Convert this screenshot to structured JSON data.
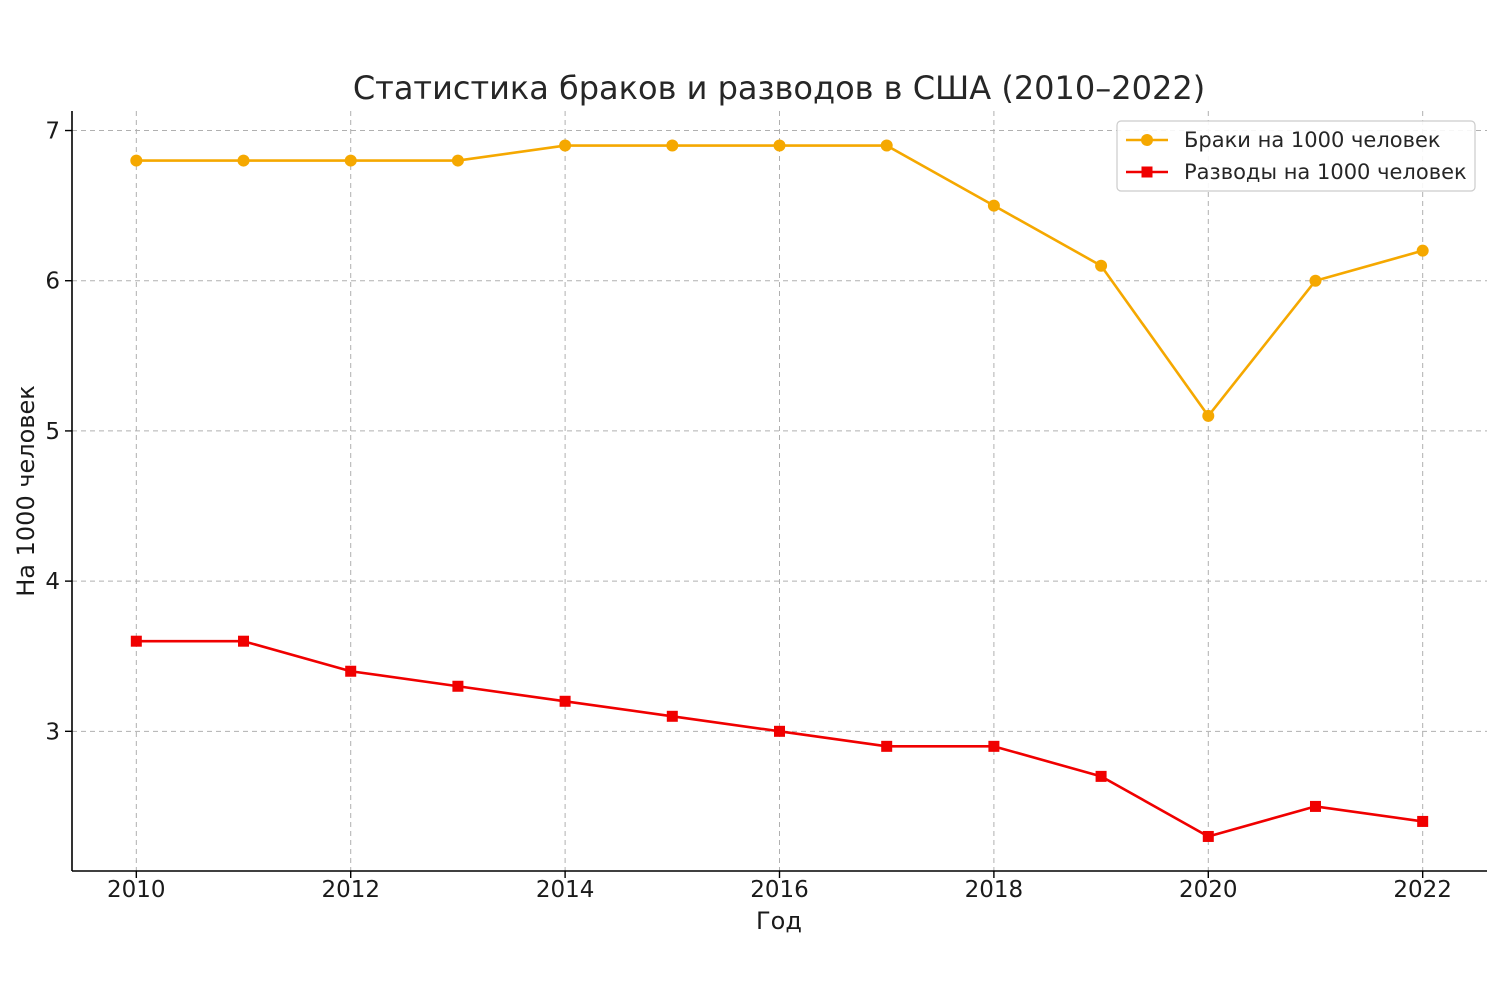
{
  "chart_data": {
    "type": "line",
    "title": "Статистика браков и разводов в США (2010–2022)",
    "xlabel": "Год",
    "ylabel": "На 1000 человек",
    "x": [
      2010,
      2011,
      2012,
      2013,
      2014,
      2015,
      2016,
      2017,
      2018,
      2019,
      2020,
      2021,
      2022
    ],
    "xticks": [
      2010,
      2012,
      2014,
      2016,
      2018,
      2020,
      2022
    ],
    "yticks": [
      3,
      4,
      5,
      6,
      7
    ],
    "xlim": [
      2009.4,
      2022.6
    ],
    "ylim": [
      2.07,
      7.13
    ],
    "grid": true,
    "legend_position": "top-right",
    "series": [
      {
        "name": "Браки на 1000 человек",
        "color": "#F5A800",
        "marker": "circle",
        "values": [
          6.8,
          6.8,
          6.8,
          6.8,
          6.9,
          6.9,
          6.9,
          6.9,
          6.5,
          6.1,
          5.1,
          6.0,
          6.2
        ]
      },
      {
        "name": "Разводы на 1000 человек",
        "color": "#F00000",
        "marker": "square",
        "values": [
          3.6,
          3.6,
          3.4,
          3.3,
          3.2,
          3.1,
          3.0,
          2.9,
          2.9,
          2.7,
          2.3,
          2.5,
          2.4
        ]
      }
    ]
  }
}
